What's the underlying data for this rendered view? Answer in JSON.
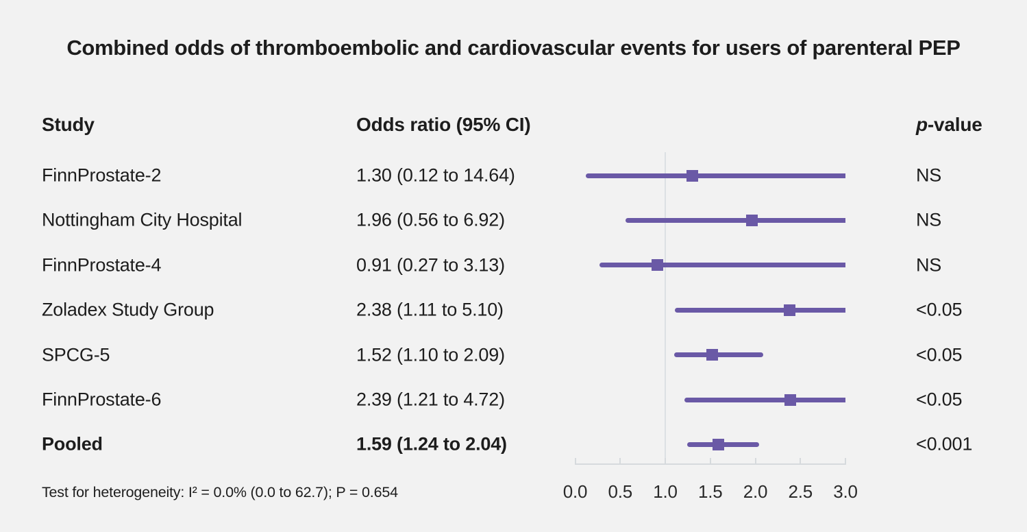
{
  "title": "Combined odds of thromboembolic and cardiovascular events for users of parenteral PEP",
  "header": {
    "study": "Study",
    "odds_ratio": "Odds ratio (95% CI)",
    "p_italic": "p",
    "p_suffix": "-value"
  },
  "footnote": "Test for heterogeneity: I² = 0.0% (0.0 to 62.7); P = 0.654",
  "chart_data": {
    "type": "forest",
    "xlabel": "",
    "xlim": [
      0,
      3
    ],
    "reference_line": 1.0,
    "x_ticks": [
      0,
      0.5,
      1,
      1.5,
      2,
      2.5,
      3
    ],
    "x_tick_labels": [
      "0.0",
      "0.5",
      "1.0",
      "1.5",
      "2.0",
      "2.5",
      "3.0"
    ],
    "rows": [
      {
        "study": "FinnProstate-2",
        "or_text": "1.30 (0.12 to 14.64)",
        "or": 1.3,
        "ci_low": 0.12,
        "ci_high": 14.64,
        "p_value": "NS",
        "bold": false
      },
      {
        "study": "Nottingham City Hospital",
        "or_text": "1.96 (0.56 to 6.92)",
        "or": 1.96,
        "ci_low": 0.56,
        "ci_high": 6.92,
        "p_value": "NS",
        "bold": false
      },
      {
        "study": "FinnProstate-4",
        "or_text": "0.91 (0.27 to 3.13)",
        "or": 0.91,
        "ci_low": 0.27,
        "ci_high": 3.13,
        "p_value": "NS",
        "bold": false
      },
      {
        "study": "Zoladex Study Group",
        "or_text": "2.38 (1.11 to 5.10)",
        "or": 2.38,
        "ci_low": 1.11,
        "ci_high": 5.1,
        "p_value": "<0.05",
        "bold": false
      },
      {
        "study": "SPCG-5",
        "or_text": "1.52 (1.10 to 2.09)",
        "or": 1.52,
        "ci_low": 1.1,
        "ci_high": 2.09,
        "p_value": "<0.05",
        "bold": false
      },
      {
        "study": "FinnProstate-6",
        "or_text": "2.39 (1.21 to 4.72)",
        "or": 2.39,
        "ci_low": 1.21,
        "ci_high": 4.72,
        "p_value": "<0.05",
        "bold": false
      },
      {
        "study": "Pooled",
        "or_text": "1.59 (1.24 to 2.04)",
        "or": 1.59,
        "ci_low": 1.24,
        "ci_high": 2.04,
        "p_value": "<0.001",
        "bold": true
      }
    ]
  },
  "colors": {
    "bar": "#6a59a6",
    "marker": "#6a59a6",
    "reference_line": "#dce0e4",
    "axis_line": "#d6dadd",
    "background": "#f2f2f2",
    "text": "#1d1d1d"
  }
}
